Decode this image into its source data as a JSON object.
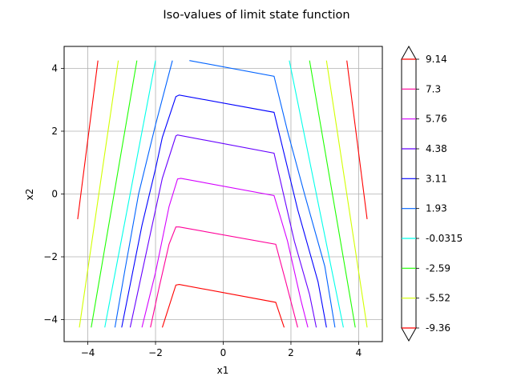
{
  "chart_data": {
    "type": "contour",
    "title": "Iso-values of limit state function",
    "xlabel": "x1",
    "ylabel": "x2",
    "xlim": [
      -4.7,
      4.7
    ],
    "ylim": [
      -4.7,
      4.7
    ],
    "xticks": [
      -4,
      -2,
      0,
      2,
      4
    ],
    "yticks": [
      -4,
      -2,
      0,
      2,
      4
    ],
    "grid": true,
    "colorbar": {
      "levels": [
        "9.14",
        "7.3",
        "5.76",
        "4.38",
        "3.11",
        "1.93",
        "-0.0315",
        "-2.59",
        "-5.52",
        "-9.36"
      ],
      "extend": "both"
    },
    "series": [
      {
        "level": "-9.36",
        "color": "#ff0000",
        "points": [
          [
            -4.3,
            -0.8
          ],
          [
            -3.7,
            4.25
          ]
        ]
      },
      {
        "level": "-9.36",
        "color": "#ff0000",
        "points": [
          [
            3.65,
            4.25
          ],
          [
            4.25,
            -0.8
          ]
        ]
      },
      {
        "level": "-5.52",
        "color": "#d2ff00",
        "points": [
          [
            -4.25,
            -4.25
          ],
          [
            -3.1,
            4.25
          ]
        ]
      },
      {
        "level": "-5.52",
        "color": "#d2ff00",
        "points": [
          [
            3.05,
            4.25
          ],
          [
            4.25,
            -4.25
          ]
        ]
      },
      {
        "level": "-2.59",
        "color": "#1eff00",
        "points": [
          [
            -3.9,
            -4.25
          ],
          [
            -2.55,
            4.25
          ]
        ]
      },
      {
        "level": "-2.59",
        "color": "#1eff00",
        "points": [
          [
            2.55,
            4.25
          ],
          [
            3.9,
            -4.25
          ]
        ]
      },
      {
        "level": "-0.0315",
        "color": "#00ffea",
        "points": [
          [
            -3.5,
            -4.25
          ],
          [
            -2.0,
            4.25
          ]
        ]
      },
      {
        "level": "-0.0315",
        "color": "#00ffea",
        "points": [
          [
            1.95,
            4.25
          ],
          [
            3.55,
            -4.25
          ]
        ]
      },
      {
        "level": "1.93",
        "color": "#0063ff",
        "points": [
          [
            -3.2,
            -4.25
          ],
          [
            -2.9,
            -2.4
          ],
          [
            -2.5,
            0.0
          ],
          [
            -2.0,
            2.2
          ],
          [
            -1.5,
            4.25
          ]
        ]
      },
      {
        "level": "1.93",
        "color": "#0063ff",
        "points": [
          [
            -1.0,
            4.25
          ],
          [
            1.5,
            3.75
          ],
          [
            1.9,
            2.0
          ],
          [
            2.4,
            0.0
          ],
          [
            3.0,
            -2.3
          ],
          [
            3.3,
            -4.25
          ]
        ]
      },
      {
        "level": "3.11",
        "color": "#0000ff",
        "points": [
          [
            -3.0,
            -4.25
          ],
          [
            -2.4,
            -1.0
          ],
          [
            -2.0,
            0.8
          ],
          [
            -1.8,
            1.8
          ],
          [
            -1.4,
            3.1
          ],
          [
            -1.3,
            3.15
          ],
          [
            1.5,
            2.6
          ],
          [
            2.2,
            -0.5
          ],
          [
            2.8,
            -2.8
          ],
          [
            3.05,
            -4.25
          ]
        ]
      },
      {
        "level": "4.38",
        "color": "#6600ff",
        "points": [
          [
            -2.75,
            -4.25
          ],
          [
            -2.2,
            -1.5
          ],
          [
            -1.8,
            0.5
          ],
          [
            -1.4,
            1.85
          ],
          [
            -1.35,
            1.88
          ],
          [
            1.5,
            1.3
          ],
          [
            2.1,
            -1.5
          ],
          [
            2.55,
            -3.2
          ],
          [
            2.75,
            -4.25
          ]
        ]
      },
      {
        "level": "5.76",
        "color": "#d400ff",
        "points": [
          [
            -2.4,
            -4.25
          ],
          [
            -2.0,
            -2.5
          ],
          [
            -1.6,
            -0.4
          ],
          [
            -1.35,
            0.48
          ],
          [
            -1.25,
            0.5
          ],
          [
            1.5,
            -0.05
          ],
          [
            1.9,
            -1.5
          ],
          [
            2.3,
            -3.4
          ],
          [
            2.5,
            -4.25
          ]
        ]
      },
      {
        "level": "7.3",
        "color": "#ff0099",
        "points": [
          [
            -2.15,
            -4.25
          ],
          [
            -1.9,
            -3.0
          ],
          [
            -1.6,
            -1.6
          ],
          [
            -1.4,
            -1.05
          ],
          [
            -1.3,
            -1.05
          ],
          [
            1.55,
            -1.6
          ],
          [
            1.85,
            -2.8
          ],
          [
            2.2,
            -4.25
          ]
        ]
      },
      {
        "level": "9.14",
        "color": "#ff0000",
        "points": [
          [
            -1.8,
            -4.25
          ],
          [
            -1.4,
            -2.9
          ],
          [
            -1.3,
            -2.88
          ],
          [
            1.55,
            -3.45
          ],
          [
            1.8,
            -4.25
          ]
        ]
      }
    ]
  }
}
